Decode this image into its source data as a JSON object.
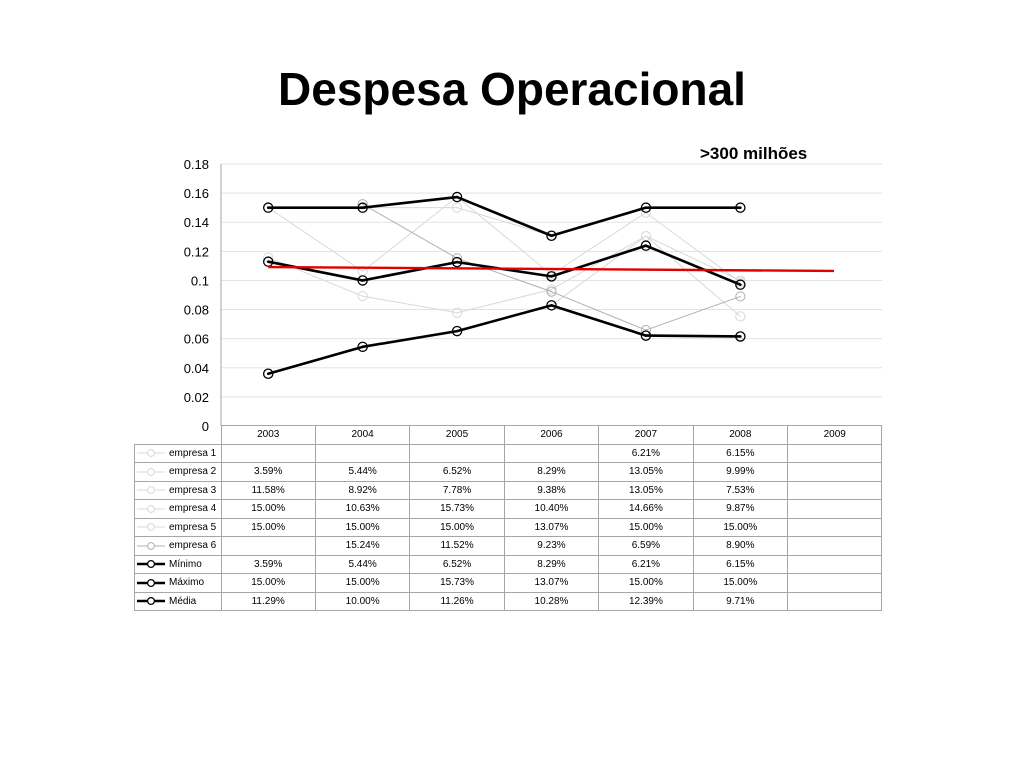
{
  "title": "Despesa Operacional",
  "subtitle": ">300  milhões",
  "chart_data": {
    "type": "line",
    "title": "Despesa Operacional",
    "subtitle": ">300  milhões",
    "categories": [
      "2003",
      "2004",
      "2005",
      "2006",
      "2007",
      "2008",
      "2009"
    ],
    "ylim": [
      0,
      0.18
    ],
    "yticks": [
      "0",
      "0.02",
      "0.04",
      "0.06",
      "0.08",
      "0.1",
      "0.12",
      "0.14",
      "0.16",
      "0.18"
    ],
    "grid": true,
    "legend": "data-table",
    "series": [
      {
        "name": "empresa 1",
        "color": "#d9d9d9",
        "style": "thin",
        "values": [
          null,
          null,
          null,
          null,
          0.0621,
          0.0615,
          null
        ],
        "labels": [
          "",
          "",
          "",
          "",
          "6.21%",
          "6.15%",
          ""
        ]
      },
      {
        "name": "empresa 2",
        "color": "#d9d9d9",
        "style": "thin",
        "values": [
          0.0359,
          0.0544,
          0.0652,
          0.0829,
          0.1305,
          0.0999,
          null
        ],
        "labels": [
          "3.59%",
          "5.44%",
          "6.52%",
          "8.29%",
          "13.05%",
          "9.99%",
          ""
        ]
      },
      {
        "name": "empresa 3",
        "color": "#d9d9d9",
        "style": "thin",
        "values": [
          0.1158,
          0.0892,
          0.0778,
          0.0938,
          0.1305,
          0.0753,
          null
        ],
        "labels": [
          "11.58%",
          "8.92%",
          "7.78%",
          "9.38%",
          "13.05%",
          "7.53%",
          ""
        ]
      },
      {
        "name": "empresa 4",
        "color": "#d9d9d9",
        "style": "thin",
        "values": [
          0.15,
          0.1063,
          0.1573,
          0.104,
          0.1466,
          0.0987,
          null
        ],
        "labels": [
          "15.00%",
          "10.63%",
          "15.73%",
          "10.40%",
          "14.66%",
          "9.87%",
          ""
        ]
      },
      {
        "name": "empresa 5",
        "color": "#d9d9d9",
        "style": "thin",
        "values": [
          0.15,
          0.15,
          0.15,
          0.1307,
          0.15,
          0.15,
          null
        ],
        "labels": [
          "15.00%",
          "15.00%",
          "15.00%",
          "13.07%",
          "15.00%",
          "15.00%",
          ""
        ]
      },
      {
        "name": "empresa 6",
        "color": "#b0b0b0",
        "style": "thin",
        "values": [
          null,
          0.1524,
          0.1152,
          0.0923,
          0.0659,
          0.089,
          null
        ],
        "labels": [
          "",
          "15.24%",
          "11.52%",
          "9.23%",
          "6.59%",
          "8.90%",
          ""
        ]
      },
      {
        "name": "Mínimo",
        "color": "#000000",
        "style": "bold",
        "values": [
          0.0359,
          0.0544,
          0.0652,
          0.0829,
          0.0621,
          0.0615,
          null
        ],
        "labels": [
          "3.59%",
          "5.44%",
          "6.52%",
          "8.29%",
          "6.21%",
          "6.15%",
          ""
        ]
      },
      {
        "name": "Máximo",
        "color": "#000000",
        "style": "bold",
        "values": [
          0.15,
          0.15,
          0.1573,
          0.1307,
          0.15,
          0.15,
          null
        ],
        "labels": [
          "15.00%",
          "15.00%",
          "15.73%",
          "13.07%",
          "15.00%",
          "15.00%",
          ""
        ]
      },
      {
        "name": "Média",
        "color": "#000000",
        "style": "bold",
        "values": [
          0.1129,
          0.1,
          0.1126,
          0.1028,
          0.1239,
          0.0971,
          null
        ],
        "labels": [
          "11.29%",
          "10.00%",
          "11.26%",
          "10.28%",
          "12.39%",
          "9.71%",
          ""
        ]
      }
    ],
    "trendline": {
      "color": "#e00000",
      "start": 0.1092,
      "end": 0.1065
    }
  }
}
